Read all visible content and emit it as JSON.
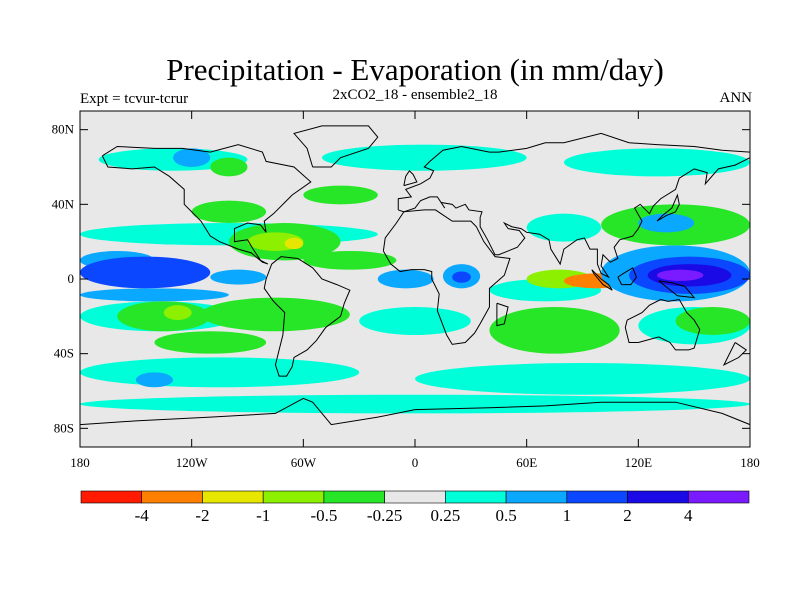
{
  "header": {
    "title": "Precipitation - Evaporation (in mm/day)",
    "left": "Expt = tcvur-tcrur",
    "center": "2xCO2_18 - ensemble2_18",
    "right": "ANN"
  },
  "axes": {
    "lat_ticks": [
      {
        "label": "80N",
        "value": 80
      },
      {
        "label": "40N",
        "value": 40
      },
      {
        "label": "0",
        "value": 0
      },
      {
        "label": "40S",
        "value": -40
      },
      {
        "label": "80S",
        "value": -80
      }
    ],
    "lon_ticks": [
      {
        "label": "180",
        "value": -180
      },
      {
        "label": "120W",
        "value": -120
      },
      {
        "label": "60W",
        "value": -60
      },
      {
        "label": "0",
        "value": 0
      },
      {
        "label": "60E",
        "value": 60
      },
      {
        "label": "120E",
        "value": 120
      },
      {
        "label": "180",
        "value": 180
      }
    ]
  },
  "colorbar": {
    "colors": [
      "#ff1a00",
      "#ff8000",
      "#e6e600",
      "#8cf000",
      "#27e627",
      "#e8e8e8",
      "#00ffd9",
      "#0aa8ff",
      "#0a47ff",
      "#1a0ae6",
      "#7a1aff"
    ],
    "labels": [
      "-4",
      "-2",
      "-1",
      "-0.5",
      "-0.25",
      "0.25",
      "0.5",
      "1",
      "2",
      "4"
    ]
  },
  "map": {
    "background": "#e8e8e8",
    "lon_range": [
      -180,
      180
    ],
    "lat_range": [
      -90,
      90
    ],
    "regions": [
      {
        "cls": 7,
        "lon": [
          -180,
          -140
        ],
        "lat": [
          5,
          15
        ]
      },
      {
        "cls": 8,
        "lon": [
          -180,
          -110
        ],
        "lat": [
          -5,
          12
        ]
      },
      {
        "cls": 7,
        "lon": [
          -110,
          -80
        ],
        "lat": [
          -3,
          5
        ]
      },
      {
        "cls": 7,
        "lon": [
          -180,
          -100
        ],
        "lat": [
          -12,
          -5
        ]
      },
      {
        "cls": 6,
        "lon": [
          -180,
          -20
        ],
        "lat": [
          18,
          30
        ]
      },
      {
        "cls": 6,
        "lon": [
          -180,
          -95
        ],
        "lat": [
          -28,
          -12
        ]
      },
      {
        "cls": 4,
        "lon": [
          -160,
          -110
        ],
        "lat": [
          -28,
          -12
        ]
      },
      {
        "cls": 3,
        "lon": [
          -135,
          -120
        ],
        "lat": [
          -22,
          -14
        ]
      },
      {
        "cls": 2,
        "lon": [
          -95,
          -70
        ],
        "lat": [
          -22,
          -14
        ]
      },
      {
        "cls": 4,
        "lon": [
          -115,
          -35
        ],
        "lat": [
          -28,
          -10
        ]
      },
      {
        "cls": 4,
        "lon": [
          -140,
          -80
        ],
        "lat": [
          -40,
          -28
        ]
      },
      {
        "cls": 6,
        "lon": [
          -180,
          -30
        ],
        "lat": [
          -58,
          -42
        ]
      },
      {
        "cls": 6,
        "lon": [
          0,
          180
        ],
        "lat": [
          -62,
          -45
        ]
      },
      {
        "cls": 7,
        "lon": [
          -150,
          -130
        ],
        "lat": [
          -58,
          -50
        ]
      },
      {
        "cls": 6,
        "lon": [
          -180,
          180
        ],
        "lat": [
          -72,
          -62
        ]
      },
      {
        "cls": 6,
        "lon": [
          -170,
          -90
        ],
        "lat": [
          58,
          70
        ]
      },
      {
        "cls": 6,
        "lon": [
          -50,
          60
        ],
        "lat": [
          58,
          72
        ]
      },
      {
        "cls": 6,
        "lon": [
          80,
          180
        ],
        "lat": [
          55,
          70
        ]
      },
      {
        "cls": 7,
        "lon": [
          -130,
          -110
        ],
        "lat": [
          60,
          70
        ]
      },
      {
        "cls": 4,
        "lon": [
          -110,
          -90
        ],
        "lat": [
          55,
          65
        ]
      },
      {
        "cls": 4,
        "lon": [
          -60,
          -20
        ],
        "lat": [
          40,
          50
        ]
      },
      {
        "cls": 4,
        "lon": [
          -120,
          -80
        ],
        "lat": [
          30,
          42
        ]
      },
      {
        "cls": 4,
        "lon": [
          -100,
          -40
        ],
        "lat": [
          10,
          30
        ]
      },
      {
        "cls": 3,
        "lon": [
          -90,
          -60
        ],
        "lat": [
          15,
          25
        ]
      },
      {
        "cls": 2,
        "lon": [
          -70,
          -60
        ],
        "lat": [
          16,
          22
        ]
      },
      {
        "cls": 7,
        "lon": [
          -20,
          10
        ],
        "lat": [
          -5,
          5
        ]
      },
      {
        "cls": 7,
        "lon": [
          15,
          35
        ],
        "lat": [
          -5,
          8
        ]
      },
      {
        "cls": 8,
        "lon": [
          20,
          30
        ],
        "lat": [
          -2,
          4
        ]
      },
      {
        "cls": 6,
        "lon": [
          -30,
          30
        ],
        "lat": [
          -30,
          -15
        ]
      },
      {
        "cls": 4,
        "lon": [
          -60,
          -10
        ],
        "lat": [
          5,
          15
        ]
      },
      {
        "cls": 6,
        "lon": [
          40,
          100
        ],
        "lat": [
          -12,
          0
        ]
      },
      {
        "cls": 4,
        "lon": [
          40,
          110
        ],
        "lat": [
          -40,
          -15
        ]
      },
      {
        "cls": 3,
        "lon": [
          60,
          95
        ],
        "lat": [
          -5,
          5
        ]
      },
      {
        "cls": 1,
        "lon": [
          80,
          115
        ],
        "lat": [
          -5,
          3
        ]
      },
      {
        "cls": 7,
        "lon": [
          100,
          180
        ],
        "lat": [
          -12,
          18
        ]
      },
      {
        "cls": 8,
        "lon": [
          115,
          180
        ],
        "lat": [
          -8,
          12
        ]
      },
      {
        "cls": 9,
        "lon": [
          125,
          170
        ],
        "lat": [
          -4,
          8
        ]
      },
      {
        "cls": 10,
        "lon": [
          130,
          155
        ],
        "lat": [
          -1,
          5
        ]
      },
      {
        "cls": 4,
        "lon": [
          100,
          180
        ],
        "lat": [
          18,
          40
        ]
      },
      {
        "cls": 6,
        "lon": [
          60,
          100
        ],
        "lat": [
          20,
          35
        ]
      },
      {
        "cls": 7,
        "lon": [
          120,
          150
        ],
        "lat": [
          25,
          35
        ]
      },
      {
        "cls": 6,
        "lon": [
          120,
          180
        ],
        "lat": [
          -35,
          -15
        ]
      },
      {
        "cls": 4,
        "lon": [
          140,
          180
        ],
        "lat": [
          -30,
          -15
        ]
      }
    ]
  }
}
